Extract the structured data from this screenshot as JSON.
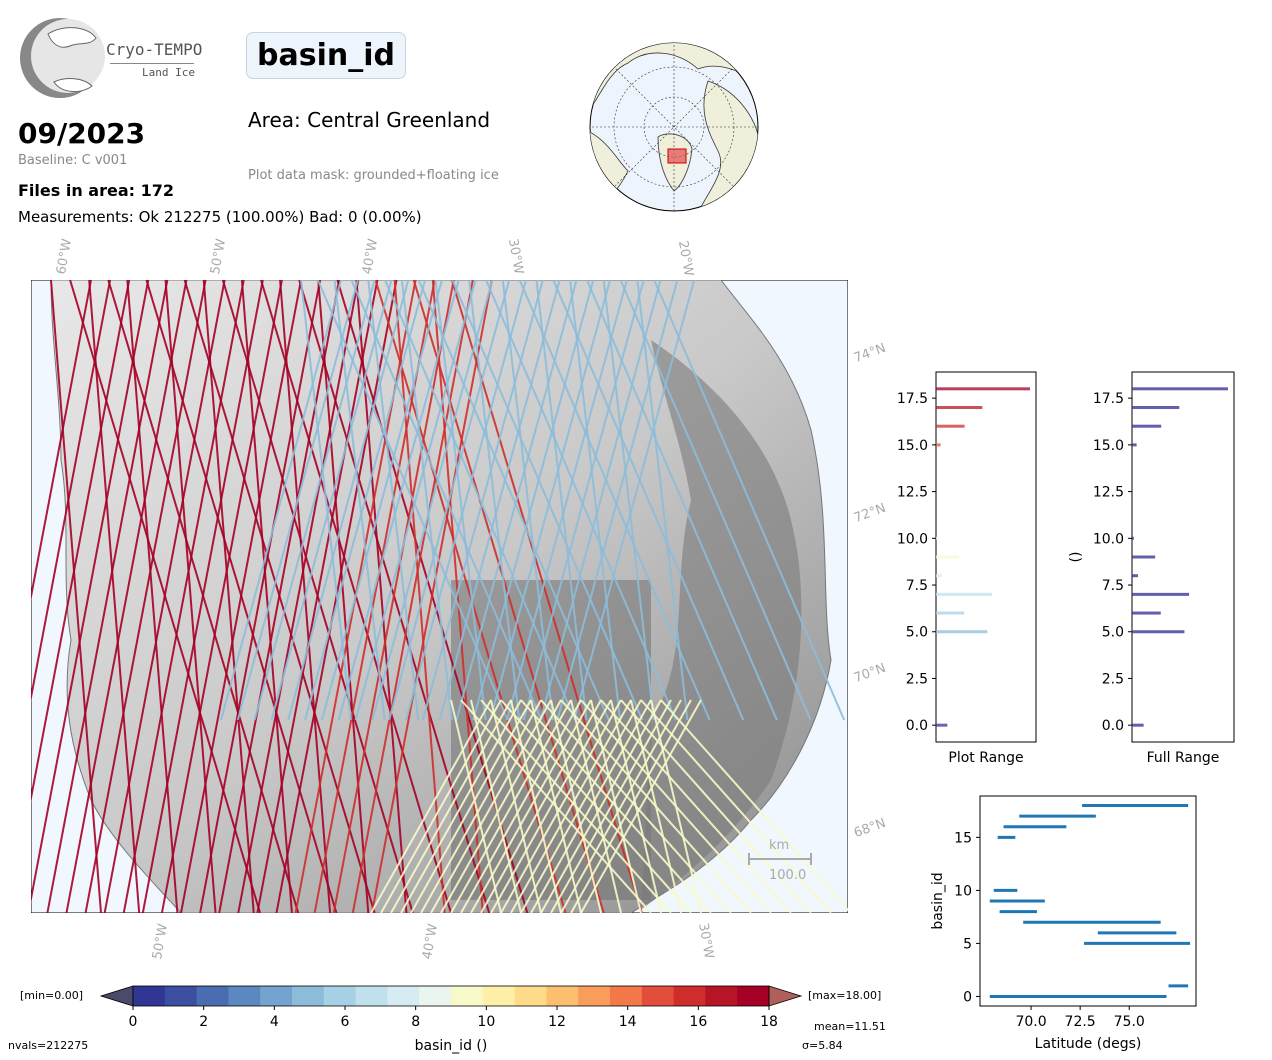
{
  "logo": {
    "brand": "Cryo-TEMPO",
    "subtitle": "Land Ice"
  },
  "header": {
    "parameter": "basin_id",
    "area": "Area: Central Greenland",
    "mask": "Plot data mask: grounded+floating ice",
    "date": "09/2023",
    "baseline": "Baseline: C v001",
    "files": "Files in area: 172",
    "measurements": "Measurements: Ok 212275 (100.00%) Bad: 0 (0.00%)"
  },
  "map": {
    "lon_top": [
      "60°W",
      "50°W",
      "40°W",
      "30°W",
      "20°W"
    ],
    "lon_bottom": [
      "50°W",
      "40°W",
      "30°W"
    ],
    "lat_right": [
      "74°N",
      "72°N",
      "70°N",
      "68°N"
    ],
    "scale_unit": "km",
    "scale_value": "100.0"
  },
  "colorbar": {
    "min_label": "[min=0.00]",
    "max_label": "[max=18.00]",
    "ticks": [
      "0",
      "2",
      "4",
      "6",
      "8",
      "10",
      "12",
      "14",
      "16",
      "18"
    ],
    "label": "basin_id ()",
    "nvals": "nvals=212275",
    "mean": "mean=11.51",
    "sigma": "σ=5.84",
    "colors": [
      "#313695",
      "#3b4ea0",
      "#4a6cb0",
      "#5b88c0",
      "#72a4cf",
      "#8cbcda",
      "#a6d0e4",
      "#bfe0ec",
      "#d6ecf2",
      "#e9f5ee",
      "#f8f9c8",
      "#fef0a6",
      "#fddb88",
      "#fcbf70",
      "#f99d5a",
      "#f3784a",
      "#e24e3b",
      "#ce2d2b",
      "#b81428",
      "#a50026"
    ]
  },
  "chart_data": [
    {
      "type": "bar",
      "orientation": "horizontal",
      "xlabel": "Plot Range",
      "ylabel": "",
      "ylim": [
        -0.9,
        18.9
      ],
      "yticks": [
        "0.0",
        "2.5",
        "5.0",
        "7.5",
        "10.0",
        "12.5",
        "15.0",
        "17.5"
      ],
      "categories": [
        0,
        5,
        6,
        7,
        8,
        9,
        10,
        15,
        16,
        17,
        18
      ],
      "values": [
        0.025,
        0.113,
        0.062,
        0.123,
        0.013,
        0.05,
        0.004,
        0.01,
        0.063,
        0.102,
        0.207
      ]
    },
    {
      "type": "bar",
      "orientation": "horizontal",
      "xlabel": "Full Range",
      "ylabel": "()",
      "ylim": [
        -0.9,
        18.9
      ],
      "yticks": [
        "0.0",
        "2.5",
        "5.0",
        "7.5",
        "10.0",
        "12.5",
        "15.0",
        "17.5"
      ],
      "categories": [
        0,
        5,
        6,
        7,
        8,
        9,
        10,
        15,
        16,
        17,
        18
      ],
      "values": [
        0.025,
        0.113,
        0.062,
        0.123,
        0.013,
        0.05,
        0.004,
        0.01,
        0.063,
        0.102,
        0.207
      ]
    },
    {
      "type": "scatter",
      "xlabel": "Latitude (degs)",
      "ylabel": "basin_id",
      "xlim": [
        67.4,
        78.4
      ],
      "ylim": [
        -0.9,
        18.9
      ],
      "xticks": [
        "70.0",
        "72.5",
        "75.0"
      ],
      "yticks": [
        "0",
        "5",
        "10",
        "15"
      ],
      "segments": [
        {
          "y": 18,
          "x0": 72.6,
          "x1": 78.0
        },
        {
          "y": 17,
          "x0": 69.4,
          "x1": 73.3
        },
        {
          "y": 16,
          "x0": 68.6,
          "x1": 71.8
        },
        {
          "y": 15,
          "x0": 68.3,
          "x1": 69.2
        },
        {
          "y": 10,
          "x0": 68.1,
          "x1": 69.3
        },
        {
          "y": 9,
          "x0": 67.9,
          "x1": 70.7
        },
        {
          "y": 8,
          "x0": 68.4,
          "x1": 70.3
        },
        {
          "y": 7,
          "x0": 69.6,
          "x1": 76.6
        },
        {
          "y": 6,
          "x0": 73.4,
          "x1": 77.4
        },
        {
          "y": 5,
          "x0": 72.7,
          "x1": 78.1
        },
        {
          "y": 1,
          "x0": 77.0,
          "x1": 78.0
        },
        {
          "y": 0,
          "x0": 67.9,
          "x1": 76.9
        }
      ]
    }
  ]
}
